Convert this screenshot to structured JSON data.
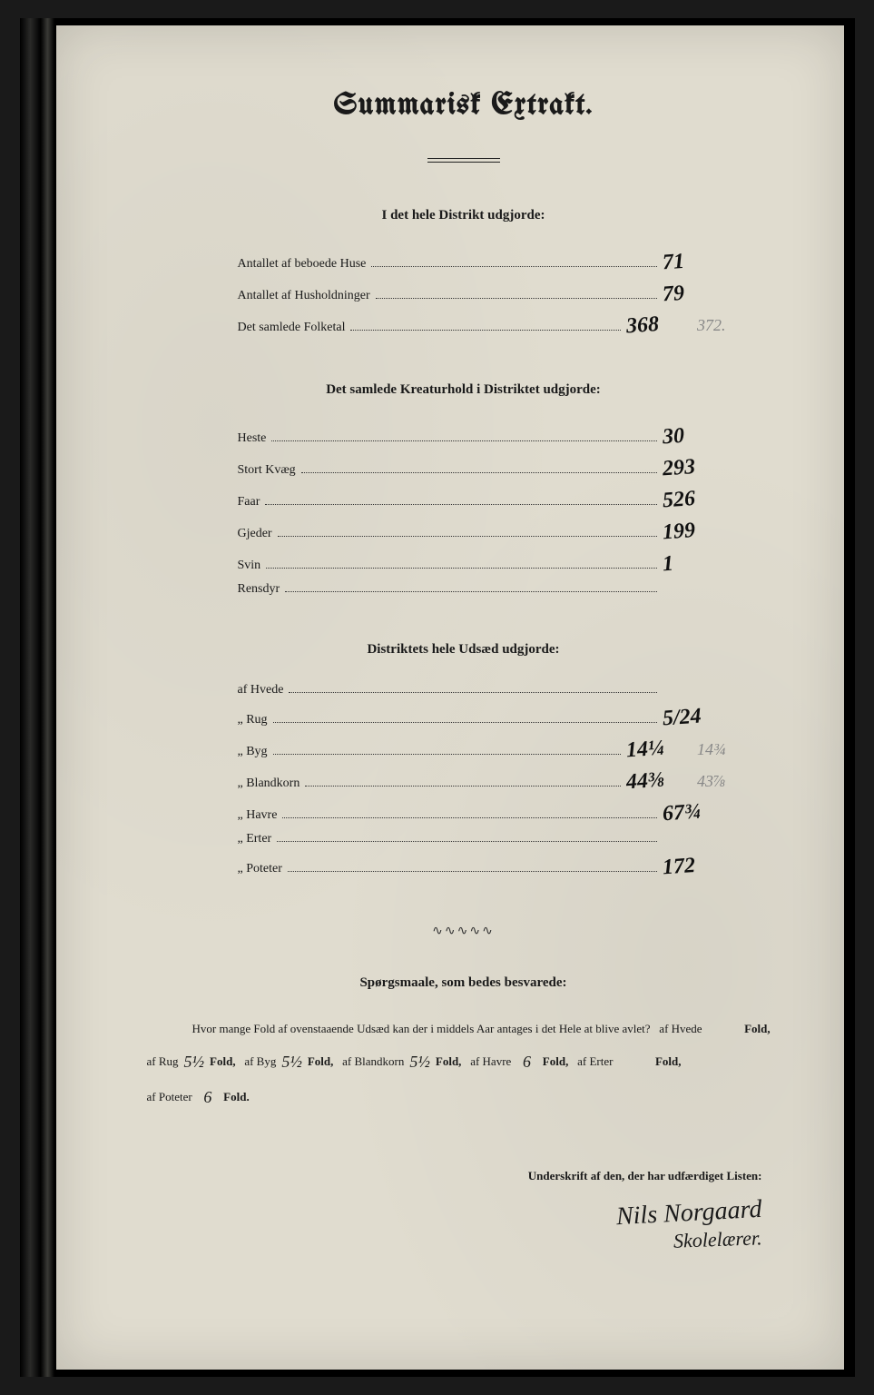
{
  "page": {
    "background_color": "#e0dccf",
    "ink_color": "#1a1a1a",
    "handwriting_color": "#111111",
    "faded_pencil_color": "#888888"
  },
  "title": "Summarisk Extrakt.",
  "section1": {
    "heading": "I det hele Distrikt udgjorde:",
    "rows": [
      {
        "label": "Antallet af beboede Huse",
        "value": "71"
      },
      {
        "label": "Antallet af Husholdninger",
        "value": "79"
      },
      {
        "label": "Det samlede Folketal",
        "value": "368",
        "pencil": "372."
      }
    ]
  },
  "section2": {
    "heading": "Det samlede Kreaturhold i Distriktet udgjorde:",
    "rows": [
      {
        "label": "Heste",
        "value": "30"
      },
      {
        "label": "Stort Kvæg",
        "value": "293"
      },
      {
        "label": "Faar",
        "value": "526"
      },
      {
        "label": "Gjeder",
        "value": "199"
      },
      {
        "label": "Svin",
        "value": "1"
      },
      {
        "label": "Rensdyr",
        "value": ""
      }
    ]
  },
  "section3": {
    "heading": "Distriktets hele Udsæd udgjorde:",
    "rows": [
      {
        "label": "af Hvede",
        "value": ""
      },
      {
        "label": "„ Rug",
        "value": "5/24"
      },
      {
        "label": "„ Byg",
        "value": "14¼",
        "pencil": "14¾"
      },
      {
        "label": "„ Blandkorn",
        "value": "44⅜",
        "pencil": "43⅞"
      },
      {
        "label": "„ Havre",
        "value": "67¾"
      },
      {
        "label": "„ Erter",
        "value": ""
      },
      {
        "label": "„ Poteter",
        "value": "172"
      }
    ]
  },
  "section4": {
    "heading": "Spørgsmaale, som bedes besvarede:",
    "intro": "Hvor mange Fold af ovenstaaende Udsæd kan der i middels Aar antages i det Hele at blive avlet?",
    "items": [
      {
        "label": "af Hvede",
        "value": "",
        "unit": "Fold,"
      },
      {
        "label": "af Rug",
        "value": "5½",
        "unit": "Fold,"
      },
      {
        "label": "af Byg",
        "value": "5½",
        "unit": "Fold,"
      },
      {
        "label": "af Blandkorn",
        "value": "5½",
        "unit": "Fold,"
      },
      {
        "label": "af Havre",
        "value": "6",
        "unit": "Fold,"
      },
      {
        "label": "af Erter",
        "value": "",
        "unit": "Fold,"
      },
      {
        "label": "af Poteter",
        "value": "6",
        "unit": "Fold."
      }
    ]
  },
  "signature": {
    "caption": "Underskrift af den, der har udfærdiget Listen:",
    "name": "Nils Norgaard",
    "role": "Skolelærer."
  }
}
